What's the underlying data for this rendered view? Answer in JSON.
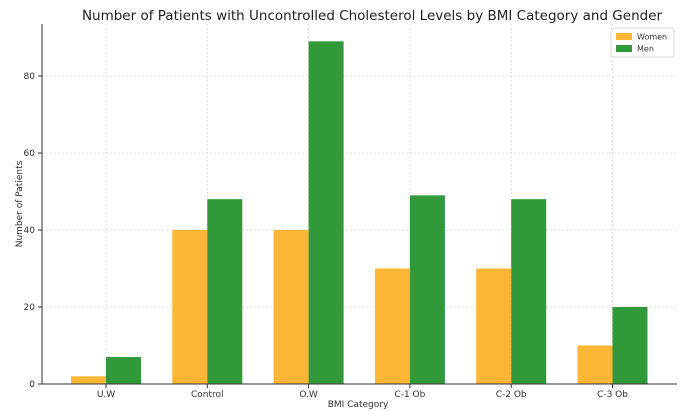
{
  "chart_data": {
    "type": "bar",
    "title": "Number of Patients with Uncontrolled Cholesterol Levels by BMI Category and Gender",
    "xlabel": "BMI Category",
    "ylabel": "Number of Patients",
    "categories": [
      "U.W",
      "Control",
      "O.W",
      "C-1 Ob",
      "C-2 Ob",
      "C-3 Ob"
    ],
    "series": [
      {
        "name": "Women",
        "color": "#fbb635",
        "values": [
          2,
          40,
          40,
          30,
          30,
          10
        ]
      },
      {
        "name": "Men",
        "color": "#32993a",
        "values": [
          7,
          48,
          89,
          49,
          48,
          20
        ]
      }
    ],
    "ylim": [
      0,
      93.5
    ],
    "yticks": [
      "0",
      "20",
      "40",
      "60",
      "80"
    ],
    "grid": true,
    "legend_position": "top-right"
  }
}
